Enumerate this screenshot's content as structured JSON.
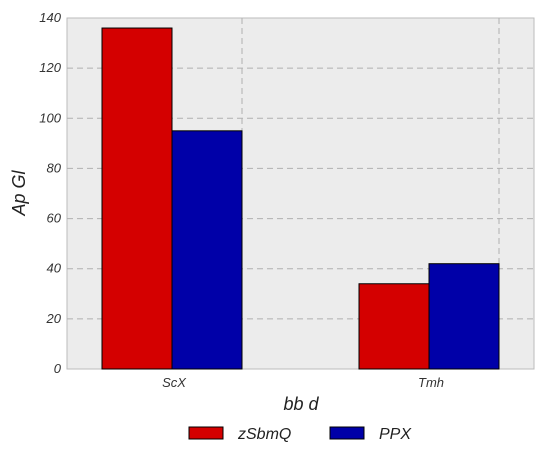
{
  "chart_data": {
    "type": "bar",
    "categories": [
      "ScX",
      "Tmh"
    ],
    "series": [
      {
        "name": "zSbmQ",
        "values": [
          136,
          34
        ],
        "color": "#d40000"
      },
      {
        "name": "PPX",
        "values": [
          95,
          42
        ],
        "color": "#0000a8"
      }
    ],
    "xlabel": "bb d",
    "ylabel": "Ap Gl",
    "ylim": [
      0,
      140
    ],
    "yticks": [
      0,
      20,
      40,
      60,
      80,
      100,
      120,
      140
    ],
    "grid": true,
    "legend_position": "bottom-center",
    "background_color": "#ececec"
  }
}
